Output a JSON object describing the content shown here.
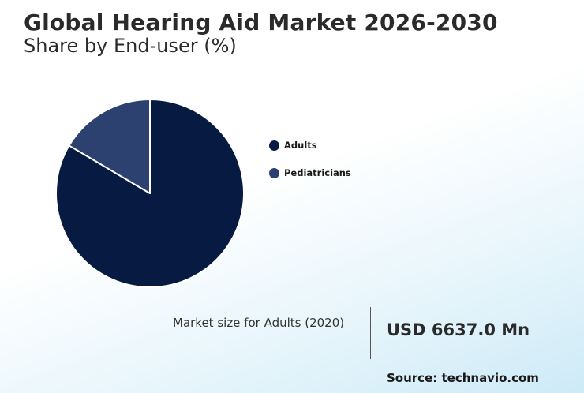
{
  "header": {
    "title": "Global Hearing Aid Market 2026-2030",
    "subtitle": "Share by End-user (%)"
  },
  "chart_data": {
    "type": "pie",
    "categories": [
      "Adults",
      "Pediatricians"
    ],
    "values": [
      83.5,
      16.5
    ],
    "colors": [
      "#071b42",
      "#2c4170"
    ],
    "legend_placement": "right"
  },
  "legend": {
    "items": [
      {
        "label": "Adults",
        "color": "#071b42"
      },
      {
        "label": "Pediatricians",
        "color": "#2c4170"
      }
    ]
  },
  "market": {
    "label": "Market size for Adults (2020)",
    "value": "USD 6637.0 Mn"
  },
  "footer": {
    "source": "Source: technavio.com"
  }
}
